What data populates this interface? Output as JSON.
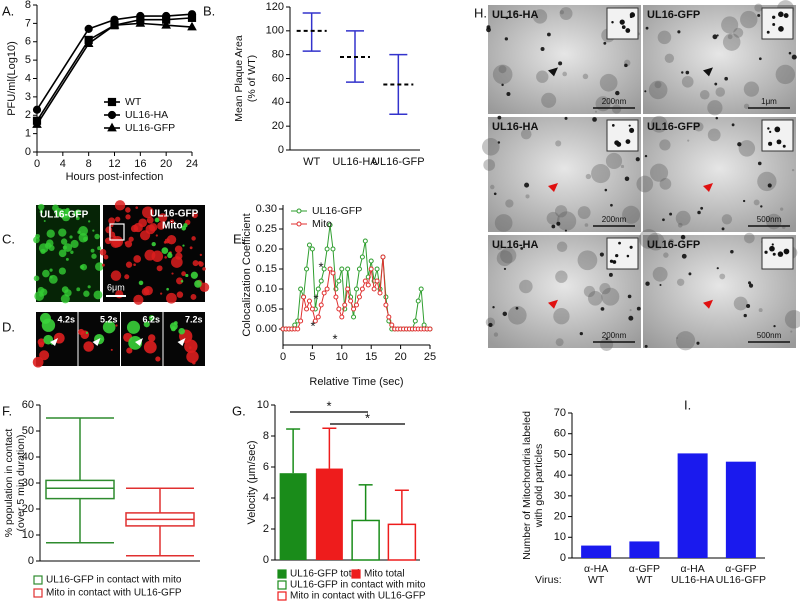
{
  "chart_data": [
    {
      "type": "line",
      "panel": "A.",
      "ylabel": "PFU/ml(Log10)",
      "xlabel": "Hours post-infection",
      "x": [
        0,
        8,
        12,
        16,
        20,
        24
      ],
      "xlim": [
        0,
        24
      ],
      "xticks": [
        0,
        4,
        8,
        12,
        16,
        20,
        24
      ],
      "ylim": [
        0,
        8
      ],
      "yticks": [
        0,
        1,
        2,
        3,
        4,
        5,
        6,
        7,
        8
      ],
      "legend": "lower right",
      "series": [
        {
          "name": "WT",
          "color": "#000000",
          "marker": "square",
          "values": [
            1.7,
            6.1,
            6.9,
            7.2,
            7.2,
            7.3
          ]
        },
        {
          "name": "UL16-HA",
          "color": "#000000",
          "marker": "circle",
          "values": [
            2.3,
            6.7,
            7.2,
            7.4,
            7.4,
            7.5
          ]
        },
        {
          "name": "UL16-GFP",
          "color": "#000000",
          "marker": "triangle",
          "values": [
            1.5,
            5.9,
            6.9,
            7.0,
            6.9,
            6.8
          ]
        }
      ]
    },
    {
      "type": "errorbar",
      "panel": "B.",
      "ylabel": [
        "Mean Plaque Area",
        "(% of WT)"
      ],
      "categories": [
        "WT",
        "UL16-HA",
        "UL16-GFP"
      ],
      "values": [
        100,
        78,
        55
      ],
      "lower": [
        83,
        57,
        30
      ],
      "upper": [
        115,
        100,
        80
      ],
      "color": "#3333cc",
      "ylim": [
        0,
        120
      ],
      "yticks": [
        0,
        20,
        40,
        60,
        80,
        100,
        120
      ]
    },
    {
      "type": "line",
      "panel": "E.",
      "ylabel": "Colocalization Coefficient",
      "xlabel": "Relative Time (sec)",
      "x": [
        0,
        0.5,
        1,
        1.5,
        2,
        2.5,
        3,
        3.5,
        4,
        4.5,
        5,
        5.5,
        6,
        6.5,
        7,
        7.5,
        8,
        8.5,
        9,
        9.5,
        10,
        10.5,
        11,
        11.5,
        12,
        12.5,
        13,
        13.5,
        14,
        14.5,
        15,
        15.5,
        16,
        16.5,
        17,
        17.5,
        18,
        18.5,
        19,
        19.5,
        20,
        20.5,
        21,
        21.5,
        22,
        22.5,
        23,
        23.5,
        24,
        24.5,
        25
      ],
      "xlim": [
        0,
        25
      ],
      "xticks": [
        0,
        5,
        10,
        15,
        20,
        25
      ],
      "ylim": [
        -0.04,
        0.31
      ],
      "yticks": [
        {
          "value": 0,
          "label": "0.00"
        },
        {
          "value": 0.05,
          "label": "0.05"
        },
        {
          "value": 0.1,
          "label": "0.10"
        },
        {
          "value": 0.15,
          "label": "0.15"
        },
        {
          "value": 0.2,
          "label": "0.20"
        },
        {
          "value": 0.25,
          "label": "0.25"
        },
        {
          "value": 0.3,
          "label": "0.30"
        }
      ],
      "legend": "upper left",
      "annotations": [
        "*",
        "*",
        "*",
        "*"
      ],
      "series": [
        {
          "name": "UL16-GFP",
          "color": "#2e9e2e",
          "marker": "circle",
          "hollow": true,
          "values": [
            0,
            0,
            0,
            0,
            0.01,
            0.02,
            0.1,
            0.08,
            0.15,
            0.21,
            0.2,
            0.05,
            0.1,
            0.12,
            0.15,
            0.2,
            0.26,
            0.2,
            0.1,
            0.12,
            0.15,
            0.05,
            0.15,
            0.08,
            0.03,
            0.1,
            0.15,
            0.18,
            0.22,
            0.13,
            0.17,
            0.12,
            0.15,
            0.1,
            0.18,
            0.08,
            0.02,
            0,
            0,
            0,
            0,
            0,
            0,
            0,
            0,
            0.02,
            0.07,
            0.1,
            0.01,
            0,
            0
          ]
        },
        {
          "name": "Mito",
          "color": "#e03030",
          "marker": "circle",
          "hollow": true,
          "values": [
            0,
            0,
            0,
            0,
            0,
            0,
            0.02,
            0.08,
            0.05,
            0.07,
            0.05,
            0.02,
            0.03,
            0.06,
            0.09,
            0.1,
            0.15,
            0.14,
            0.08,
            0.05,
            0.03,
            0.06,
            0.1,
            0.07,
            0.05,
            0.06,
            0.08,
            0.1,
            0.12,
            0.11,
            0.15,
            0.1,
            0.12,
            0.09,
            0.18,
            0.06,
            0.03,
            0.01,
            0,
            0,
            0,
            0,
            0,
            0,
            0,
            0,
            0,
            0,
            0,
            0,
            0
          ]
        }
      ]
    },
    {
      "type": "box",
      "panel": "F.",
      "ylabel": [
        "% population in contact",
        "(over 5 min duration)"
      ],
      "ylim": [
        0,
        60
      ],
      "yticks": [
        0,
        10,
        20,
        30,
        40,
        50,
        60
      ],
      "series": [
        {
          "name": "UL16-GFP in contact with mito",
          "color": "#2e8b2e",
          "min": 7,
          "q1": 24,
          "median": 28,
          "q3": 31,
          "max": 55
        },
        {
          "name": "Mito in contact with UL16-GFP",
          "color": "#e03030",
          "min": 2,
          "q1": 13.5,
          "median": 16,
          "q3": 18.5,
          "max": 28
        }
      ]
    },
    {
      "type": "bar",
      "panel": "G.",
      "ylabel": "Velocity (μm/sec)",
      "ylim": [
        0,
        10
      ],
      "yticks": [
        0,
        2,
        4,
        6,
        8,
        10
      ],
      "annotations": [
        "*",
        "*"
      ],
      "series": [
        {
          "name": "UL16-GFP total",
          "color": "#1a8c1a",
          "fill": "solid",
          "values": [
            5.6
          ],
          "errors": [
            2.85
          ]
        },
        {
          "name": "Mito total",
          "color": "#ee1c1c",
          "fill": "solid",
          "values": [
            5.9
          ],
          "errors": [
            2.6
          ]
        },
        {
          "name": "UL16-GFP in contact with mito",
          "color": "#1a8c1a",
          "fill": "hollow",
          "values": [
            2.55
          ],
          "errors": [
            2.3
          ]
        },
        {
          "name": "Mito in contact with UL16-GFP",
          "color": "#ee1c1c",
          "fill": "hollow",
          "values": [
            2.3
          ],
          "errors": [
            2.2
          ]
        }
      ]
    },
    {
      "type": "bar",
      "panel": "I.",
      "ylabel": [
        "Number of Mitochondria labeled",
        "with gold particles"
      ],
      "categories": [
        "α-HA",
        "α-GFP",
        "α-HA",
        "α-GFP"
      ],
      "virus": [
        "WT",
        "WT",
        "UL16-HA",
        "UL16-GFP"
      ],
      "virus_label": "Virus:",
      "values": [
        6,
        8,
        50.5,
        46.5
      ],
      "color": "#1a1aee",
      "ylim": [
        0,
        70
      ],
      "yticks": [
        0,
        10,
        20,
        30,
        40,
        50,
        60,
        70
      ]
    }
  ],
  "micrographs": [
    {
      "panel": "C.",
      "labels": [
        "UL16-GFP",
        "UL16-GFP",
        "Mito",
        "6μm"
      ]
    },
    {
      "panel": "D.",
      "labels": [
        "4.2s",
        "5.2s",
        "6.2s",
        "7.2s"
      ]
    },
    {
      "panel": "H.",
      "labels": [
        "UL16-HA",
        "200nm",
        "UL16-GFP",
        "1μm",
        "UL16-HA",
        "200nm",
        "UL16-GFP",
        "500nm",
        "UL16-HA",
        "200nm",
        "UL16-GFP",
        "500nm"
      ]
    }
  ]
}
